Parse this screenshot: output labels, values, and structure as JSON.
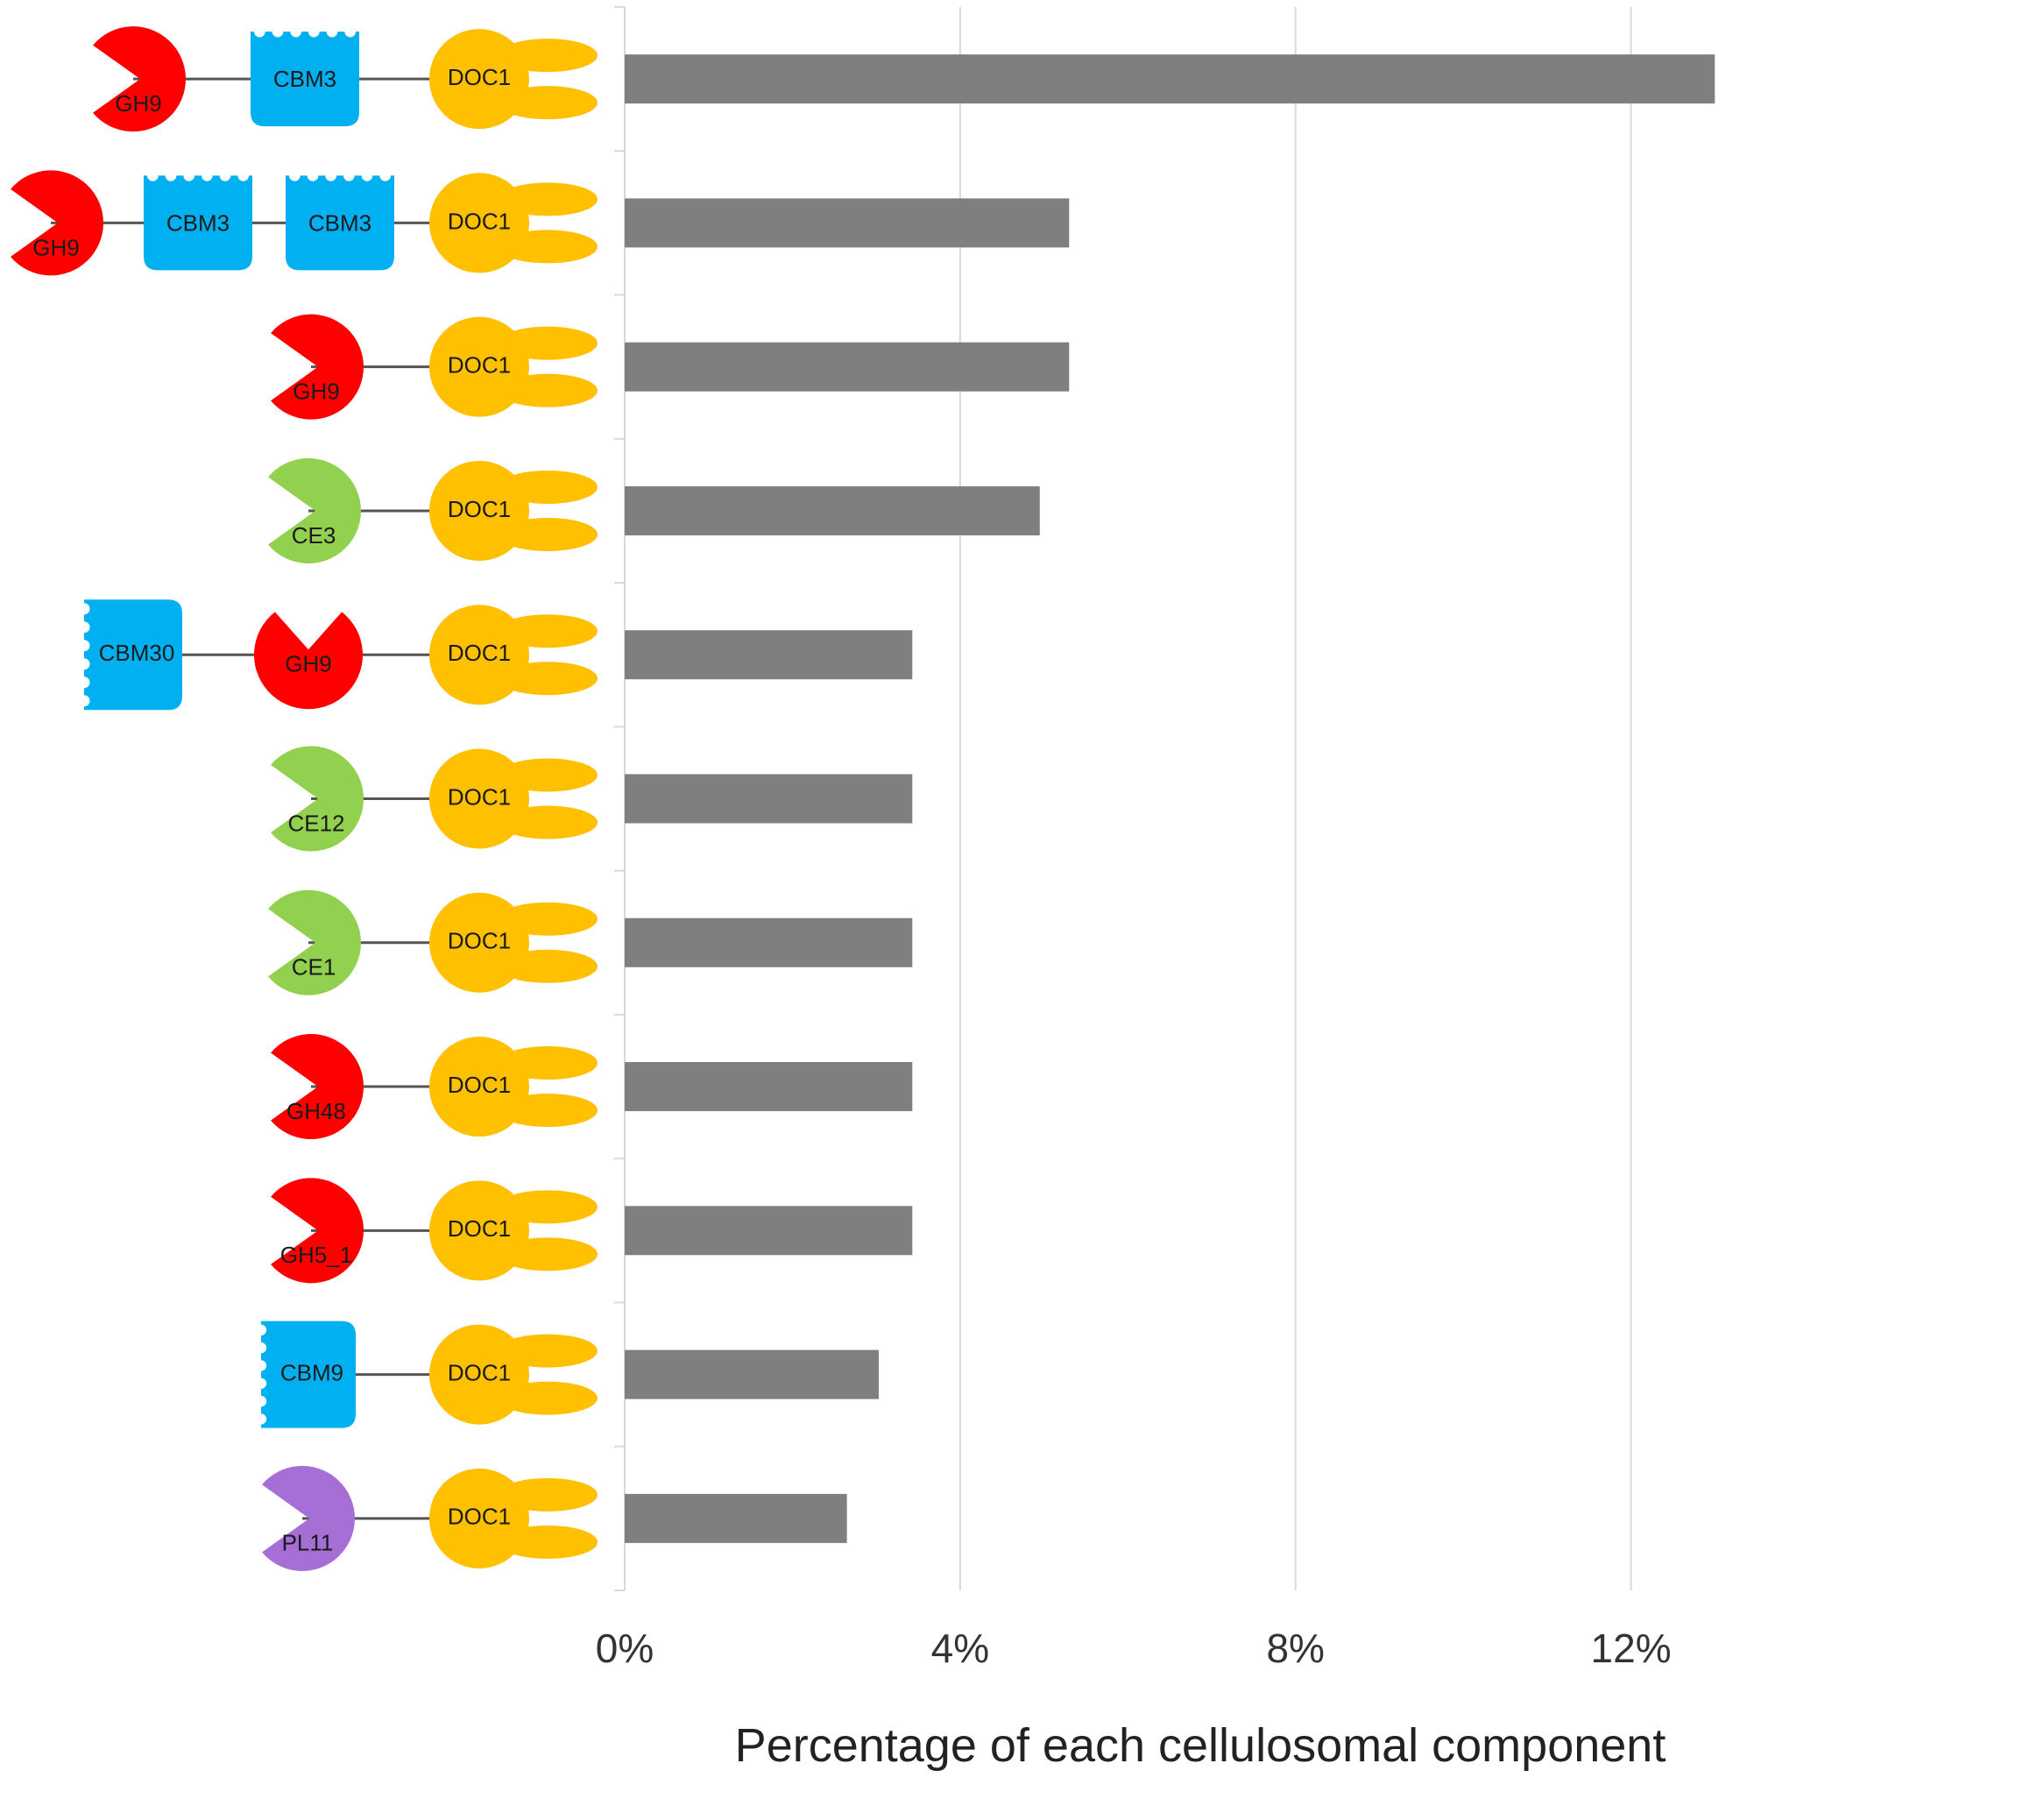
{
  "chart_data": {
    "type": "bar",
    "orientation": "horizontal",
    "xlabel": "Percentage of each cellulosomal component",
    "ylabel": "",
    "xlim": [
      0,
      0.14
    ],
    "x_ticks": [
      0,
      0.04,
      0.08,
      0.12
    ],
    "x_tick_labels": [
      "0%",
      "4%",
      "8%",
      "12%"
    ],
    "grid": "vertical gridlines",
    "bar_color": "#7f7f7f",
    "categories": [
      {
        "domains": [
          {
            "type": "gh",
            "label": "GH9",
            "color": "#ff0000"
          },
          {
            "type": "cbm",
            "label": "CBM3",
            "color": "#00b0f0"
          },
          {
            "type": "doc",
            "label": "DOC1",
            "color": "#ffc000"
          }
        ],
        "value": 0.13
      },
      {
        "domains": [
          {
            "type": "gh",
            "label": "GH9",
            "color": "#ff0000"
          },
          {
            "type": "cbm",
            "label": "CBM3",
            "color": "#00b0f0"
          },
          {
            "type": "cbm",
            "label": "CBM3",
            "color": "#00b0f0"
          },
          {
            "type": "doc",
            "label": "DOC1",
            "color": "#ffc000"
          }
        ],
        "value": 0.053
      },
      {
        "domains": [
          {
            "type": "gh",
            "label": "GH9",
            "color": "#ff0000"
          },
          {
            "type": "doc",
            "label": "DOC1",
            "color": "#ffc000"
          }
        ],
        "value": 0.053
      },
      {
        "domains": [
          {
            "type": "gh",
            "label": "CE3",
            "color": "#92d050"
          },
          {
            "type": "doc",
            "label": "DOC1",
            "color": "#ffc000"
          }
        ],
        "value": 0.0495
      },
      {
        "domains": [
          {
            "type": "cbm30",
            "label": "CBM30",
            "color": "#00b0f0"
          },
          {
            "type": "gh9b",
            "label": "GH9",
            "color": "#ff0000"
          },
          {
            "type": "doc",
            "label": "DOC1",
            "color": "#ffc000"
          }
        ],
        "value": 0.0343
      },
      {
        "domains": [
          {
            "type": "gh",
            "label": "CE12",
            "color": "#92d050"
          },
          {
            "type": "doc",
            "label": "DOC1",
            "color": "#ffc000"
          }
        ],
        "value": 0.0343
      },
      {
        "domains": [
          {
            "type": "gh",
            "label": "CE1",
            "color": "#92d050"
          },
          {
            "type": "doc",
            "label": "DOC1",
            "color": "#ffc000"
          }
        ],
        "value": 0.0343
      },
      {
        "domains": [
          {
            "type": "gh",
            "label": "GH48",
            "color": "#ff0000"
          },
          {
            "type": "doc",
            "label": "DOC1",
            "color": "#ffc000"
          }
        ],
        "value": 0.0343
      },
      {
        "domains": [
          {
            "type": "gh",
            "label": "GH5_1",
            "color": "#ff0000"
          },
          {
            "type": "doc",
            "label": "DOC1",
            "color": "#ffc000"
          }
        ],
        "value": 0.0343
      },
      {
        "domains": [
          {
            "type": "cbm9",
            "label": "CBM9",
            "color": "#00b0f0"
          },
          {
            "type": "doc",
            "label": "DOC1",
            "color": "#ffc000"
          }
        ],
        "value": 0.0303
      },
      {
        "domains": [
          {
            "type": "gh",
            "label": "PL11",
            "color": "#a66fd5"
          },
          {
            "type": "doc",
            "label": "DOC1",
            "color": "#ffc000"
          }
        ],
        "value": 0.0265
      }
    ]
  }
}
